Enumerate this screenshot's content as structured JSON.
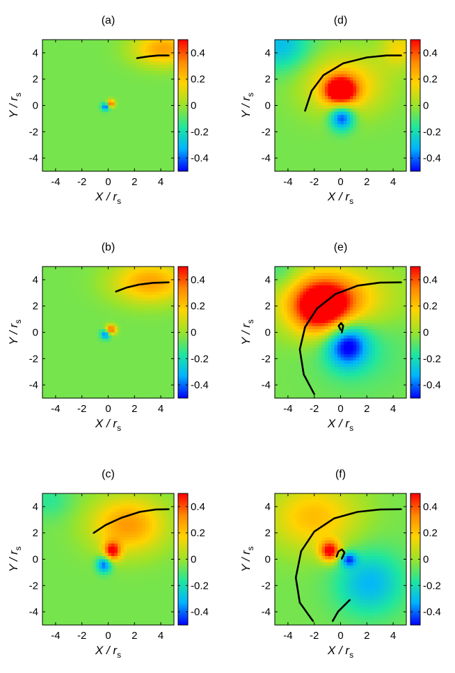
{
  "figure": {
    "colorbar_range": [
      -0.5,
      0.5
    ],
    "colorbar_ticks": [
      -0.4,
      -0.2,
      0,
      0.2,
      0.4
    ],
    "colorbar_tick_labels": [
      "-0.4",
      "-0.2",
      "0",
      "0.2",
      "0.4"
    ],
    "colormap": [
      "#0000ff",
      "#00b4ff",
      "#1ee6a0",
      "#9be32a",
      "#ffd400",
      "#ff8a00",
      "#ff0000"
    ]
  },
  "chart_data": [
    {
      "panel": "(a)",
      "type": "heatmap",
      "xlabel": "X / r",
      "xlabel_sub": "s",
      "ylabel": "Y / r",
      "ylabel_sub": "s",
      "xlim": [
        -5,
        5
      ],
      "ylim": [
        -5,
        5
      ],
      "xticks": [
        -4,
        -2,
        0,
        2,
        4
      ],
      "yticks": [
        -4,
        -2,
        0,
        2,
        4
      ],
      "x_tick_labels": [
        "-4",
        "-2",
        "0",
        "2",
        "4"
      ],
      "y_tick_labels": [
        "-4",
        "-2",
        "0",
        "2",
        "4"
      ],
      "background_value": -0.05,
      "features": [
        {
          "x": 4.2,
          "y": 4.3,
          "sx": 1.6,
          "sy": 0.9,
          "value": 0.28
        },
        {
          "x": 0.2,
          "y": 0.15,
          "sx": 0.2,
          "sy": 0.2,
          "value": 0.45
        },
        {
          "x": -0.2,
          "y": -0.1,
          "sx": 0.22,
          "sy": 0.2,
          "value": -0.45
        }
      ],
      "curve": [
        [
          2.2,
          3.6
        ],
        [
          3.0,
          3.72
        ],
        [
          3.8,
          3.8
        ],
        [
          4.6,
          3.8
        ]
      ]
    },
    {
      "panel": "(b)",
      "type": "heatmap",
      "xlabel": "X / r",
      "xlabel_sub": "s",
      "ylabel": "Y / r",
      "ylabel_sub": "s",
      "xlim": [
        -5,
        5
      ],
      "ylim": [
        -5,
        5
      ],
      "xticks": [
        -4,
        -2,
        0,
        2,
        4
      ],
      "yticks": [
        -4,
        -2,
        0,
        2,
        4
      ],
      "x_tick_labels": [
        "-4",
        "-2",
        "0",
        "2",
        "4"
      ],
      "y_tick_labels": [
        "-4",
        "-2",
        "0",
        "2",
        "4"
      ],
      "background_value": -0.05,
      "features": [
        {
          "x": 3.2,
          "y": 3.8,
          "sx": 2.0,
          "sy": 1.1,
          "value": 0.28
        },
        {
          "x": 0.2,
          "y": 0.2,
          "sx": 0.28,
          "sy": 0.25,
          "value": 0.45
        },
        {
          "x": -0.2,
          "y": -0.15,
          "sx": 0.25,
          "sy": 0.25,
          "value": -0.45
        }
      ],
      "curve": [
        [
          0.6,
          3.1
        ],
        [
          1.4,
          3.4
        ],
        [
          2.3,
          3.62
        ],
        [
          3.4,
          3.76
        ],
        [
          4.6,
          3.8
        ]
      ]
    },
    {
      "panel": "(c)",
      "type": "heatmap",
      "xlabel": "X / r",
      "xlabel_sub": "s",
      "ylabel": "Y / r",
      "ylabel_sub": "s",
      "xlim": [
        -5,
        5
      ],
      "ylim": [
        -5,
        5
      ],
      "xticks": [
        -4,
        -2,
        0,
        2,
        4
      ],
      "yticks": [
        -4,
        -2,
        0,
        2,
        4
      ],
      "x_tick_labels": [
        "-4",
        "-2",
        "0",
        "2",
        "4"
      ],
      "y_tick_labels": [
        "-4",
        "-2",
        "0",
        "2",
        "4"
      ],
      "background_value": -0.05,
      "features": [
        {
          "x": 1.5,
          "y": 2.6,
          "sx": 2.0,
          "sy": 1.5,
          "value": 0.3
        },
        {
          "x": 0.3,
          "y": 0.6,
          "sx": 0.45,
          "sy": 0.5,
          "value": 0.45
        },
        {
          "x": -0.3,
          "y": -0.4,
          "sx": 0.4,
          "sy": 0.45,
          "value": -0.45
        },
        {
          "x": -4.5,
          "y": 4.5,
          "sx": 1.2,
          "sy": 1.0,
          "value": -0.15
        }
      ],
      "curve": [
        [
          -1.1,
          2.0
        ],
        [
          -0.2,
          2.6
        ],
        [
          1.0,
          3.15
        ],
        [
          2.4,
          3.6
        ],
        [
          3.6,
          3.78
        ],
        [
          4.6,
          3.8
        ]
      ]
    },
    {
      "panel": "(d)",
      "type": "heatmap",
      "xlabel": "X / r",
      "xlabel_sub": "s",
      "ylabel": "Y / r",
      "ylabel_sub": "s",
      "xlim": [
        -5,
        5
      ],
      "ylim": [
        -5,
        5
      ],
      "xticks": [
        -4,
        -2,
        0,
        2,
        4
      ],
      "yticks": [
        -4,
        -2,
        0,
        2,
        4
      ],
      "x_tick_labels": [
        "-4",
        "-2",
        "0",
        "2",
        "4"
      ],
      "y_tick_labels": [
        "-4",
        "-2",
        "0",
        "2",
        "4"
      ],
      "background_value": -0.05,
      "features": [
        {
          "x": 0.0,
          "y": 1.1,
          "sx": 0.85,
          "sy": 0.75,
          "value": 0.55
        },
        {
          "x": 0.3,
          "y": 1.6,
          "sx": 2.2,
          "sy": 1.6,
          "value": 0.22
        },
        {
          "x": 0.1,
          "y": -0.9,
          "sx": 0.65,
          "sy": 0.7,
          "value": -0.5
        },
        {
          "x": -4.6,
          "y": 4.6,
          "sx": 1.6,
          "sy": 1.4,
          "value": -0.3
        },
        {
          "x": 4.5,
          "y": 4.3,
          "sx": 1.0,
          "sy": 1.0,
          "value": 0.15
        }
      ],
      "curve": [
        [
          -2.7,
          -0.4
        ],
        [
          -2.2,
          1.1
        ],
        [
          -1.3,
          2.3
        ],
        [
          0.2,
          3.2
        ],
        [
          2.0,
          3.65
        ],
        [
          3.5,
          3.8
        ],
        [
          4.6,
          3.8
        ]
      ]
    },
    {
      "panel": "(e)",
      "type": "heatmap",
      "xlabel": "X / r",
      "xlabel_sub": "s",
      "ylabel": "Y / r",
      "ylabel_sub": "s",
      "xlim": [
        -5,
        5
      ],
      "ylim": [
        -5,
        5
      ],
      "xticks": [
        -4,
        -2,
        0,
        2,
        4
      ],
      "yticks": [
        -4,
        -2,
        0,
        2,
        4
      ],
      "x_tick_labels": [
        "-4",
        "-2",
        "0",
        "2",
        "4"
      ],
      "y_tick_labels": [
        "-4",
        "-2",
        "0",
        "2",
        "4"
      ],
      "background_value": -0.05,
      "features": [
        {
          "x": -1.4,
          "y": 1.9,
          "sx": 1.6,
          "sy": 1.4,
          "value": 0.55
        },
        {
          "x": -0.3,
          "y": 2.5,
          "sx": 3.0,
          "sy": 1.8,
          "value": 0.25
        },
        {
          "x": 0.5,
          "y": -0.9,
          "sx": 1.1,
          "sy": 1.2,
          "value": -0.5
        },
        {
          "x": 1.5,
          "y": -1.0,
          "sx": 2.4,
          "sy": 2.2,
          "value": -0.15
        },
        {
          "x": -4.6,
          "y": 4.6,
          "sx": 1.0,
          "sy": 1.0,
          "value": -0.15
        }
      ],
      "curve": [
        [
          -2.0,
          -4.7
        ],
        [
          -2.8,
          -3.2
        ],
        [
          -3.1,
          -1.3
        ],
        [
          -2.7,
          0.4
        ],
        [
          -1.8,
          1.8
        ],
        [
          -0.4,
          2.9
        ],
        [
          1.3,
          3.55
        ],
        [
          3.0,
          3.78
        ],
        [
          4.6,
          3.8
        ]
      ],
      "inner_curve": [
        [
          0.0,
          0.2
        ],
        [
          -0.15,
          0.5
        ],
        [
          0.05,
          0.7
        ],
        [
          0.2,
          0.5
        ],
        [
          0.1,
          0.0
        ]
      ]
    },
    {
      "panel": "(f)",
      "type": "heatmap",
      "xlabel": "X / r",
      "xlabel_sub": "s",
      "ylabel": "Y / r",
      "ylabel_sub": "s",
      "xlim": [
        -5,
        5
      ],
      "ylim": [
        -5,
        5
      ],
      "xticks": [
        -4,
        -2,
        0,
        2,
        4
      ],
      "yticks": [
        -4,
        -2,
        0,
        2,
        4
      ],
      "x_tick_labels": [
        "-4",
        "-2",
        "0",
        "2",
        "4"
      ],
      "y_tick_labels": [
        "-4",
        "-2",
        "0",
        "2",
        "4"
      ],
      "background_value": -0.05,
      "features": [
        {
          "x": -0.8,
          "y": 0.6,
          "sx": 0.55,
          "sy": 0.55,
          "value": 0.5
        },
        {
          "x": -2.0,
          "y": 3.2,
          "sx": 2.4,
          "sy": 1.8,
          "value": 0.22
        },
        {
          "x": 2.2,
          "y": -1.8,
          "sx": 1.8,
          "sy": 1.7,
          "value": -0.32
        },
        {
          "x": 0.6,
          "y": 0.0,
          "sx": 0.45,
          "sy": 0.4,
          "value": -0.4
        }
      ],
      "curve": [
        [
          -2.1,
          -4.7
        ],
        [
          -3.1,
          -3.3
        ],
        [
          -3.4,
          -1.4
        ],
        [
          -3.0,
          0.6
        ],
        [
          -2.0,
          2.1
        ],
        [
          -0.5,
          3.1
        ],
        [
          1.3,
          3.6
        ],
        [
          3.0,
          3.78
        ],
        [
          4.6,
          3.8
        ]
      ],
      "inner_curve": [
        [
          -0.3,
          0.2
        ],
        [
          -0.15,
          0.6
        ],
        [
          0.1,
          0.75
        ],
        [
          0.3,
          0.5
        ],
        [
          0.1,
          0.05
        ]
      ],
      "third_curve": [
        [
          -0.6,
          -4.7
        ],
        [
          -0.2,
          -4.0
        ],
        [
          0.3,
          -3.5
        ],
        [
          0.7,
          -3.1
        ]
      ]
    }
  ]
}
